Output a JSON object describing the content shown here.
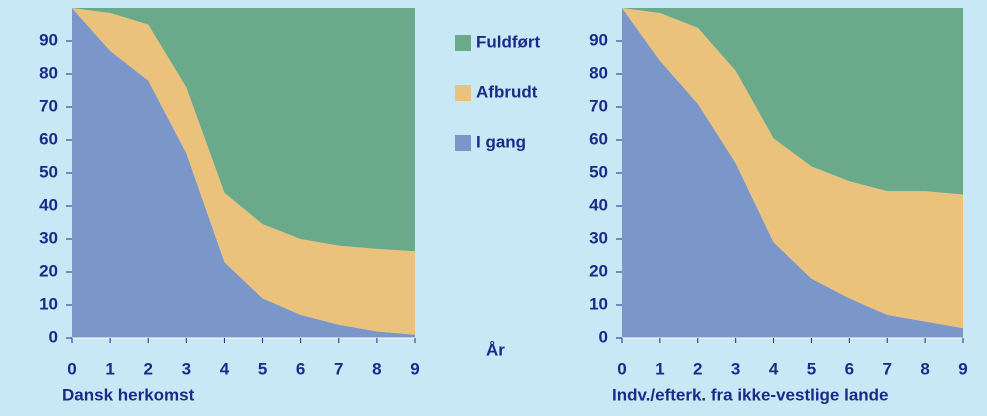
{
  "chart_data": [
    {
      "type": "stacked_area",
      "subtitle": "Dansk herkomst",
      "xlabel": "År",
      "x": [
        0,
        1,
        2,
        3,
        4,
        5,
        6,
        7,
        8,
        9
      ],
      "xlim": [
        0,
        9
      ],
      "xticks": [
        0,
        1,
        2,
        3,
        4,
        5,
        6,
        7,
        8,
        9
      ],
      "ylim": [
        0,
        100
      ],
      "yticks": [
        0,
        10,
        20,
        30,
        40,
        50,
        60,
        70,
        80,
        90
      ],
      "series": [
        {
          "name": "I gang",
          "color": "#7b96c8",
          "values": [
            100,
            87,
            78,
            56,
            23,
            12,
            7,
            4,
            2,
            1
          ]
        },
        {
          "name": "Afbrudt",
          "color": "#ebc27c",
          "values": [
            0,
            11.5,
            17,
            20,
            21,
            22.5,
            23,
            24,
            25,
            25.3
          ]
        },
        {
          "name": "Fuldført",
          "color": "#6aaa8a",
          "values": [
            0,
            1.5,
            5,
            24,
            56,
            65.5,
            70,
            72,
            73,
            73.7
          ]
        }
      ]
    },
    {
      "type": "stacked_area",
      "subtitle": "Indv./efterk. fra ikke-vestlige lande",
      "x": [
        0,
        1,
        2,
        3,
        4,
        5,
        6,
        7,
        8,
        9
      ],
      "xlim": [
        0,
        9
      ],
      "xticks": [
        0,
        1,
        2,
        3,
        4,
        5,
        6,
        7,
        8,
        9
      ],
      "ylim": [
        0,
        100
      ],
      "yticks": [
        0,
        10,
        20,
        30,
        40,
        50,
        60,
        70,
        80,
        90
      ],
      "series": [
        {
          "name": "I gang",
          "color": "#7b96c8",
          "values": [
            100,
            84,
            71,
            53,
            29,
            18,
            12,
            7,
            5,
            3
          ]
        },
        {
          "name": "Afbrudt",
          "color": "#ebc27c",
          "values": [
            0,
            14.5,
            23,
            28,
            31.5,
            34,
            35.5,
            37.5,
            39.5,
            40.5
          ]
        },
        {
          "name": "Fuldført",
          "color": "#6aaa8a",
          "values": [
            0,
            1.5,
            6,
            19,
            39.5,
            48,
            52.5,
            55.5,
            55.5,
            56.5
          ]
        }
      ]
    }
  ]
}
